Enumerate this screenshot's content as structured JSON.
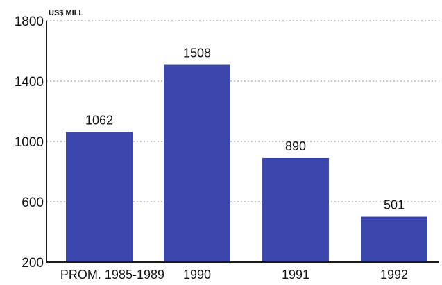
{
  "chart_data": {
    "type": "bar",
    "unit_label": "US$ MILL",
    "categories": [
      "PROM. 1985-1989",
      "1990",
      "1991",
      "1992"
    ],
    "values": [
      1062,
      1508,
      890,
      501
    ],
    "value_labels": [
      "1062",
      "1508",
      "890",
      "501"
    ],
    "ylim": [
      200,
      1800
    ],
    "yticks": [
      200,
      600,
      1000,
      1400,
      1800
    ],
    "ytick_labels": [
      "200",
      "600",
      "1000",
      "1400",
      "1800"
    ],
    "grid": true,
    "bar_color": "#3c47ad",
    "grid_color": "#8f8f8f",
    "axis_color": "#1a1a1a"
  }
}
